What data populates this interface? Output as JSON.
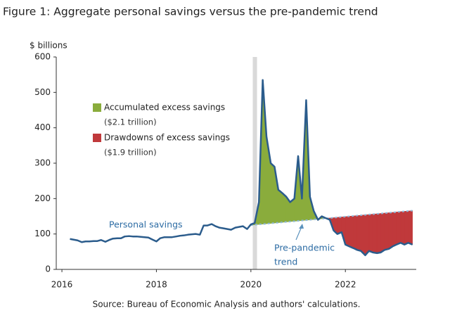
{
  "chart_data": {
    "type": "line",
    "title": "Figure 1: Aggregate personal savings versus the pre-pandemic trend",
    "y_label": "$ billions",
    "source": "Source: Bureau of Economic Analysis and authors' calculations.",
    "xlim": [
      2015.88,
      2023.5
    ],
    "xticks": [
      2016,
      2018,
      2020,
      2022
    ],
    "ylim": [
      0,
      600
    ],
    "yticks": [
      0,
      100,
      200,
      300,
      400,
      500,
      600
    ],
    "shaded_period": [
      2020.04,
      2020.13
    ],
    "shaded_color": "#d9d9d9",
    "x": [
      2016.17,
      2016.25,
      2016.33,
      2016.42,
      2016.5,
      2016.58,
      2016.67,
      2016.75,
      2016.83,
      2016.92,
      2017.0,
      2017.08,
      2017.17,
      2017.25,
      2017.33,
      2017.42,
      2017.5,
      2017.58,
      2017.67,
      2017.75,
      2017.83,
      2017.92,
      2018.0,
      2018.08,
      2018.17,
      2018.25,
      2018.33,
      2018.42,
      2018.5,
      2018.58,
      2018.67,
      2018.75,
      2018.83,
      2018.92,
      2019.0,
      2019.08,
      2019.17,
      2019.25,
      2019.33,
      2019.42,
      2019.5,
      2019.58,
      2019.67,
      2019.75,
      2019.83,
      2019.92,
      2020.0,
      2020.08,
      2020.17,
      2020.25,
      2020.33,
      2020.42,
      2020.5,
      2020.58,
      2020.67,
      2020.75,
      2020.83,
      2020.92,
      2021.0,
      2021.08,
      2021.17,
      2021.25,
      2021.33,
      2021.42,
      2021.5,
      2021.58,
      2021.67,
      2021.75,
      2021.83,
      2021.92,
      2022.0,
      2022.08,
      2022.17,
      2022.25,
      2022.33,
      2022.42,
      2022.5,
      2022.58,
      2022.67,
      2022.75,
      2022.83,
      2022.92,
      2023.0,
      2023.08,
      2023.17,
      2023.25,
      2023.33,
      2023.42
    ],
    "series": [
      {
        "name": "Personal savings",
        "color": "#2b5c8c",
        "values": [
          86,
          84,
          82,
          77,
          79,
          79,
          80,
          80,
          83,
          78,
          83,
          87,
          88,
          88,
          93,
          94,
          93,
          93,
          92,
          91,
          90,
          84,
          79,
          88,
          91,
          91,
          91,
          93,
          95,
          96,
          98,
          99,
          100,
          98,
          124,
          124,
          128,
          122,
          118,
          116,
          114,
          112,
          118,
          120,
          122,
          114,
          127,
          131,
          190,
          535,
          375,
          300,
          290,
          225,
          215,
          205,
          190,
          200,
          320,
          200,
          478,
          205,
          165,
          140,
          150,
          145,
          140,
          110,
          100,
          105,
          70,
          65,
          60,
          55,
          52,
          40,
          52,
          48,
          46,
          48,
          55,
          58,
          65,
          70,
          75,
          70,
          75,
          70
        ]
      },
      {
        "name": "Pre-pandemic trend",
        "color": "#8fb8d8",
        "x": [
          2020.0,
          2023.42
        ],
        "values": [
          125,
          166
        ]
      }
    ],
    "trend_label": [
      "Pre-pandemic",
      "trend"
    ],
    "areas": [
      {
        "name": "Accumulated excess savings",
        "note": "($2.1 trillion)",
        "color": "#8aac3c"
      },
      {
        "name": "Drawdowns of excess savings",
        "note": "($1.9 trillion)",
        "color": "#c0393b"
      }
    ]
  }
}
